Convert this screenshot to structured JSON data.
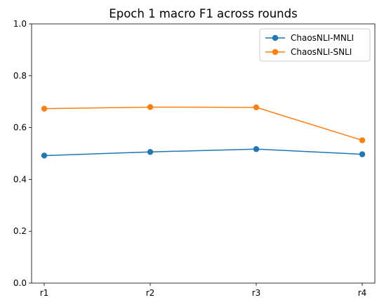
{
  "chart_data": {
    "type": "line",
    "title": "Epoch 1 macro F1 across rounds",
    "xlabel": "",
    "ylabel": "",
    "categories": [
      "r1",
      "r2",
      "r3",
      "r4"
    ],
    "ylim": [
      0.0,
      1.0
    ],
    "yticks": [
      0.0,
      0.2,
      0.4,
      0.6,
      0.8,
      1.0
    ],
    "ytick_labels": [
      "0.0",
      "0.2",
      "0.4",
      "0.6",
      "0.8",
      "1.0"
    ],
    "grid": false,
    "legend_position": "top-right",
    "series": [
      {
        "name": "ChaosNLI-MNLI",
        "color": "#1f77b4",
        "marker": "circle",
        "values": [
          0.492,
          0.506,
          0.517,
          0.497
        ]
      },
      {
        "name": "ChaosNLI-SNLI",
        "color": "#ff7f0e",
        "marker": "circle",
        "values": [
          0.673,
          0.679,
          0.678,
          0.551
        ]
      }
    ]
  }
}
